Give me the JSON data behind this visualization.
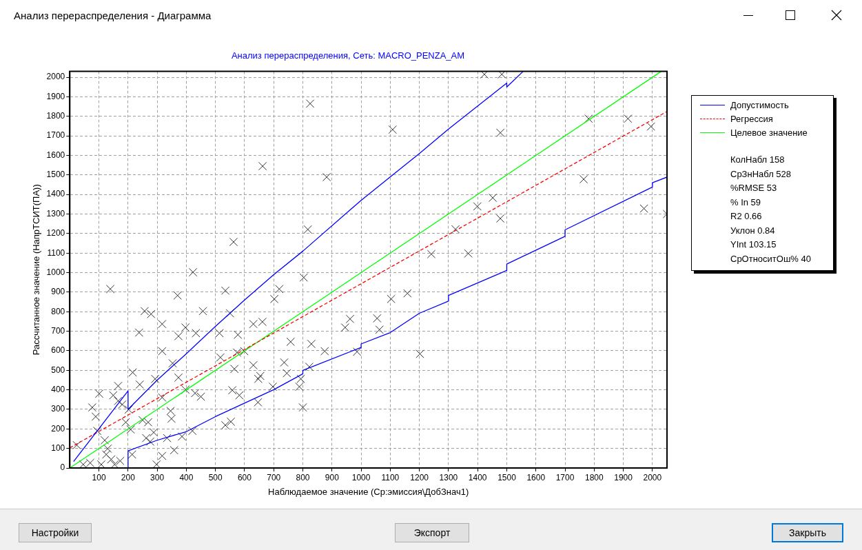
{
  "chart_data": {
    "type": "scatter",
    "title": "Анализ перераспределения, Сеть: MACRO_PENZA_AM",
    "xlabel": "Наблюдаемое значение (Ср:эмиссия\\ДобЗнач1)",
    "ylabel": "Рассчитанное значение (НапрТСИТ(ПА))",
    "xlim": [
      0,
      2050
    ],
    "xticks": [
      100,
      200,
      300,
      400,
      500,
      600,
      700,
      800,
      900,
      1000,
      1100,
      1200,
      1300,
      1400,
      1500,
      1600,
      1700,
      1800,
      1900,
      2000
    ],
    "ylim": [
      0,
      2030
    ],
    "yticks": [
      0,
      100,
      200,
      300,
      400,
      500,
      600,
      700,
      800,
      900,
      1000,
      1100,
      1200,
      1300,
      1400,
      1500,
      1600,
      1700,
      1800,
      1900,
      2000
    ],
    "grid": true,
    "legend": "right",
    "annotations": [
      "Анализ перераспределения - Диаграмма",
      "КолНабл 158",
      "СрЗнНабл 528",
      "%RMSE 53",
      "% In 59",
      "R2 0.66",
      "Уклон 0.84",
      "YInt 103.15",
      "СрОтноситОш% 40",
      "Настройки",
      "Экспорт",
      "Закрыть"
    ],
    "series": [
      {
        "name": "Допустимость",
        "type": "line",
        "color": "#0000ff",
        "x": [
          13,
          200,
          200,
          300,
          400,
          500,
          600,
          700,
          800,
          1000,
          1200,
          1300,
          1500,
          1500,
          1556,
          null,
          200,
          200,
          300,
          400,
          500,
          600,
          700,
          800,
          800,
          1000,
          1000,
          1100,
          1200,
          1300,
          1300,
          1500,
          1500,
          1700,
          1700,
          2000,
          2000,
          2050
        ],
        "values": [
          33,
          395,
          300,
          450,
          585,
          725,
          860,
          990,
          1110,
          1370,
          1610,
          1735,
          1970,
          1950,
          2030,
          null,
          0,
          88,
          142,
          186,
          263,
          332,
          401,
          482,
          500,
          617,
          635,
          693,
          792,
          854,
          883,
          1011,
          1044,
          1186,
          1219,
          1438,
          1460,
          1489
        ]
      },
      {
        "name": "Регрессия",
        "type": "line",
        "color": "#ff0000",
        "line_style": "dashed",
        "x": [
          0,
          2050
        ],
        "values": [
          103,
          1825
        ]
      },
      {
        "name": "Целевое значение",
        "type": "line",
        "color": "#00ff00",
        "x": [
          0,
          2030
        ],
        "values": [
          0,
          2030
        ]
      },
      {
        "color": "#333333",
        "marker": "cross",
        "x": [
          1423,
          1483,
          1781,
          1916,
          1995,
          1478,
          825,
          1108,
          662,
          882,
          817,
          562,
          1241,
          423,
          1324,
          803,
          1764,
          1971,
          2050,
          1452,
          1399,
          1478,
          1368,
          719,
          702,
          1103,
          1159,
          661,
          962,
          1055,
          945,
          1063,
          758,
          829,
          875,
          986,
          1202,
          736,
          822,
          745,
          654,
          793,
          788,
          697,
          646,
          800,
          139,
          534,
          370,
          457,
          257,
          279,
          550,
          317,
          397,
          238,
          373,
          433,
          514,
          577,
          630,
          317,
          353,
          517,
          599,
          574,
          216,
          293,
          373,
          240,
          166,
          101,
          77,
          166,
          149,
          180,
          346,
          430,
          450,
          397,
          558,
          582,
          647,
          534,
          553,
          421,
          349,
          385,
          334,
          276,
          317,
          298,
          214,
          202,
          209,
          192,
          250,
          269,
          288,
          262,
          89,
          94,
          120,
          130,
          142,
          70,
          46,
          108,
          154,
          24,
          173,
          125,
          358,
          317,
          565,
          630
        ],
        "values": [
          2015,
          2015,
          1788,
          1788,
          1748,
          1716,
          1865,
          1732,
          1545,
          1489,
          1221,
          1157,
          1095,
          1002,
          1222,
          975,
          1478,
          1328,
          1300,
          1383,
          1339,
          1277,
          1098,
          916,
          865,
          865,
          894,
          748,
          763,
          766,
          719,
          708,
          646,
          635,
          598,
          595,
          584,
          540,
          518,
          485,
          471,
          456,
          416,
          416,
          336,
          310,
          916,
          908,
          883,
          803,
          803,
          788,
          792,
          737,
          719,
          693,
          675,
          690,
          690,
          682,
          737,
          598,
          536,
          566,
          598,
          591,
          489,
          456,
          463,
          427,
          420,
          380,
          310,
          343,
          372,
          325,
          292,
          383,
          365,
          401,
          398,
          372,
          456,
          219,
          237,
          190,
          252,
          161,
          153,
          135,
          62,
          18,
          69,
          299,
          197,
          234,
          245,
          234,
          182,
          153,
          263,
          190,
          142,
          99,
          44,
          26,
          18,
          18,
          18,
          117,
          36,
          69,
          91,
          361,
          507,
          526
        ]
      }
    ]
  }
}
